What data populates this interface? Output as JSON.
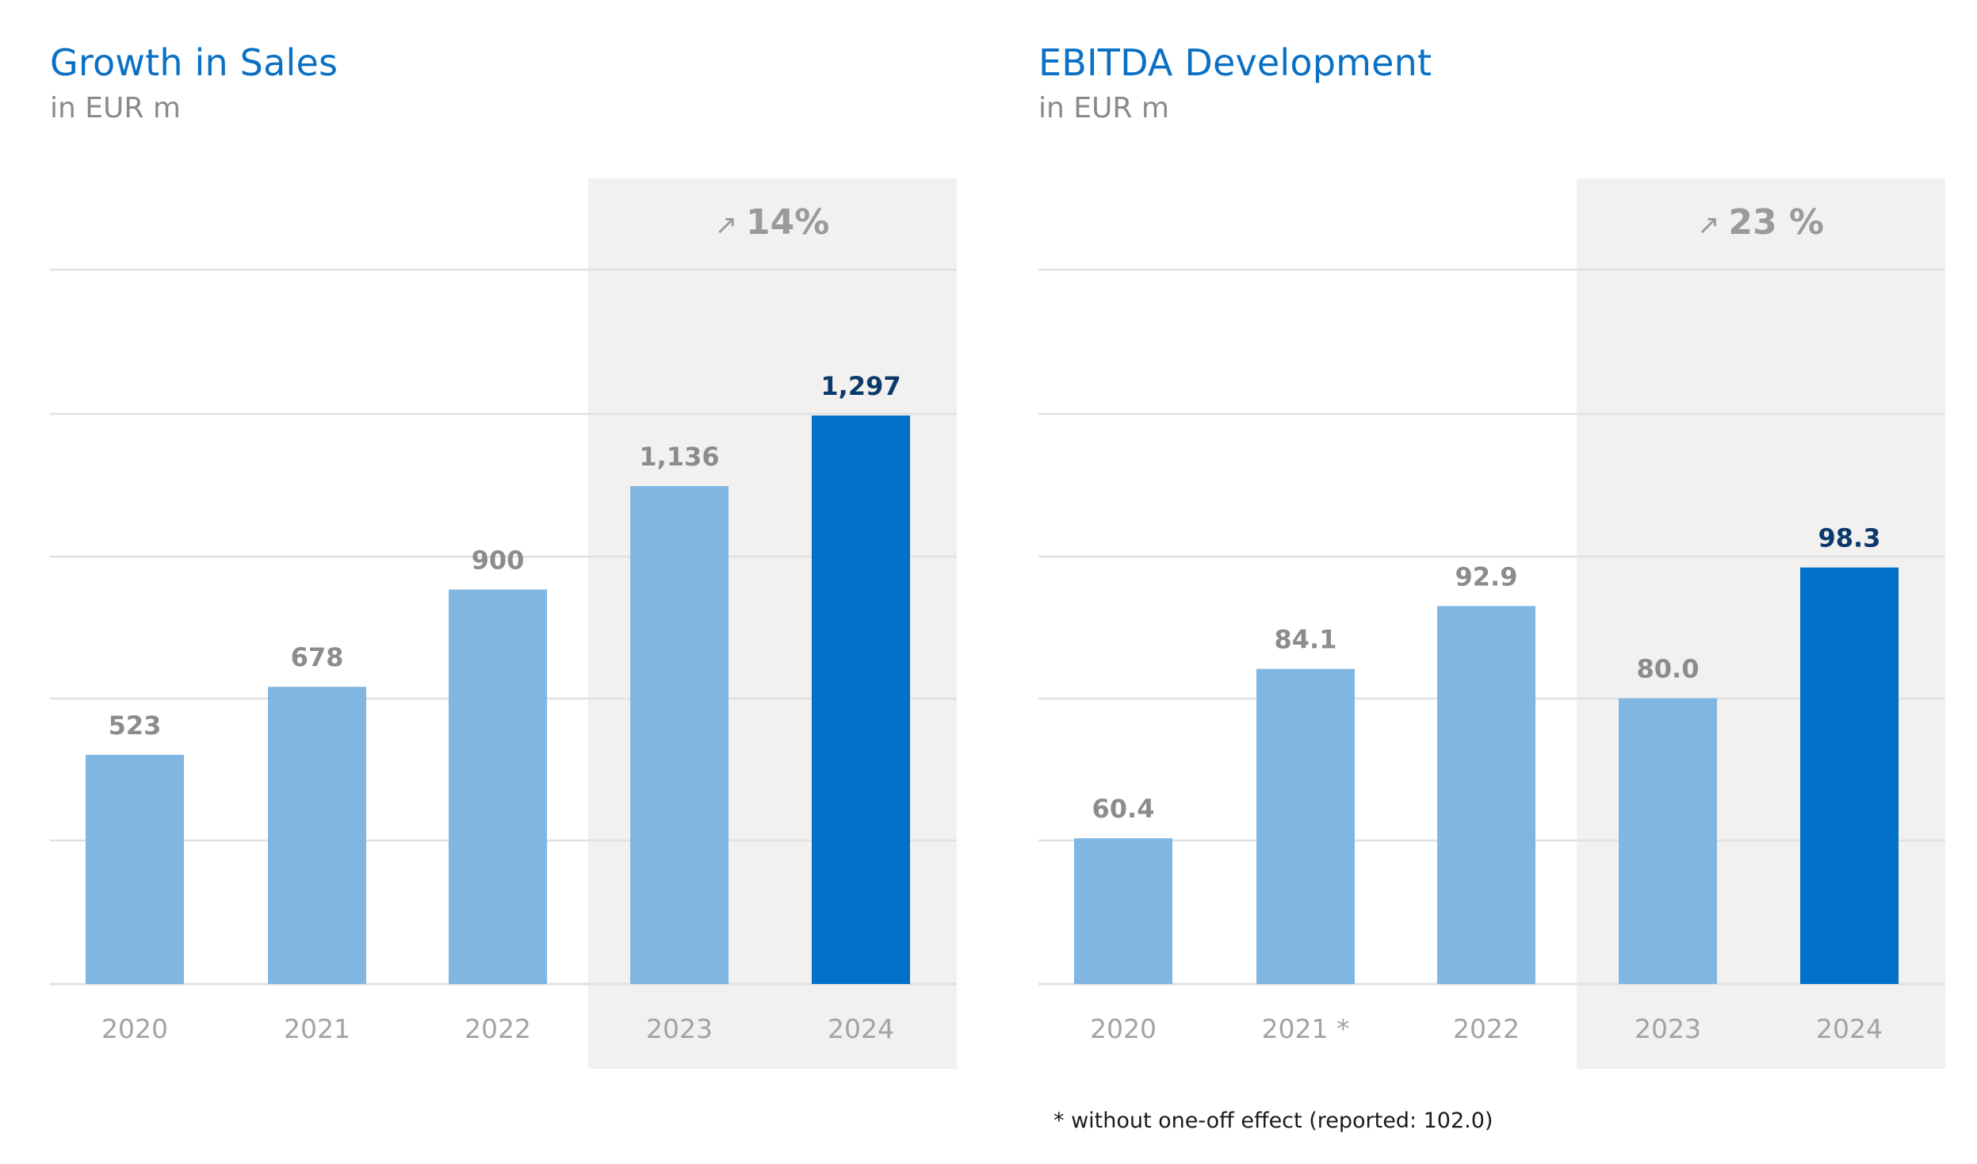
{
  "chart_data": [
    {
      "type": "bar",
      "title": "Growth in Sales",
      "subtitle": "in EUR m",
      "categories": [
        "2020",
        "2021",
        "2022",
        "2023",
        "2024"
      ],
      "values": [
        523,
        678,
        900,
        1136,
        1297
      ],
      "value_labels": [
        "523",
        "678",
        "900",
        "1,136",
        "1,297"
      ],
      "ylim": [
        0,
        1630
      ],
      "grid": true,
      "highlight_categories": [
        "2023",
        "2024"
      ],
      "growth_label": "14%",
      "growth_arrow": "↗",
      "colors": {
        "bar": "#80b6e2",
        "bar_highlight": "#0070c8",
        "highlight_band": "#f2f1f0",
        "label": "#8c8c8c",
        "label_highlight": "#0b3a6a",
        "grid": "#e1e1e1"
      }
    },
    {
      "type": "bar",
      "title": "EBITDA Development",
      "subtitle": "in EUR m",
      "categories": [
        "2020",
        "2021 *",
        "2022",
        "2023",
        "2024"
      ],
      "values": [
        60.4,
        84.1,
        92.9,
        80.0,
        98.3
      ],
      "value_labels": [
        "60.4",
        "84.1",
        "92.9",
        "80.0",
        "98.3"
      ],
      "ylim": [
        40,
        140
      ],
      "grid": true,
      "highlight_categories": [
        "2023",
        "2024"
      ],
      "growth_label": "23 %",
      "growth_arrow": "↗",
      "footnote": "* without one-off effect (reported: 102.0)",
      "colors": {
        "bar": "#80b6e2",
        "bar_highlight": "#0070c8",
        "highlight_band": "#f2f1f0",
        "label": "#8c8c8c",
        "label_highlight": "#0b3a6a",
        "grid": "#e1e1e1"
      }
    }
  ]
}
